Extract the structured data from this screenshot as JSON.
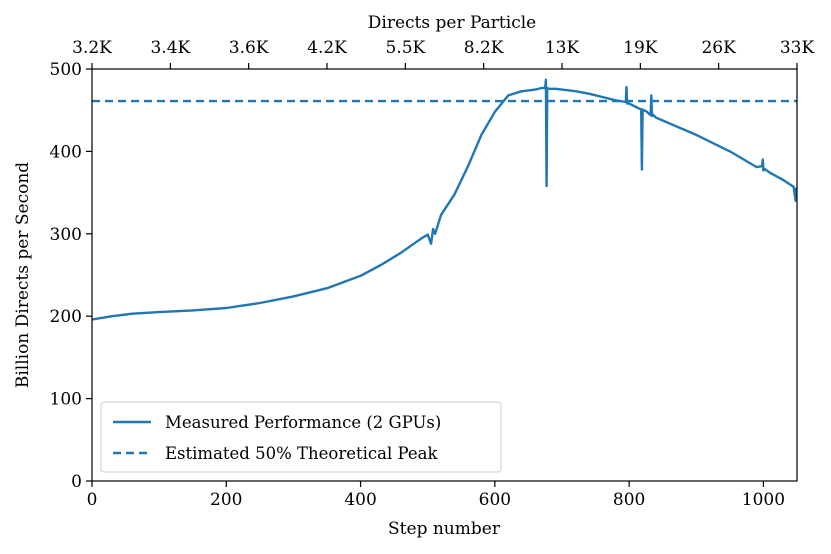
{
  "chart_data": {
    "type": "line",
    "xlabel": "Step number",
    "ylabel": "Billion Directs per Second",
    "top_xlabel": "Directs per Particle",
    "xlim": [
      0,
      1050
    ],
    "ylim": [
      0,
      500
    ],
    "xticks": [
      0,
      200,
      400,
      600,
      800,
      1000
    ],
    "yticks": [
      0,
      100,
      200,
      300,
      400,
      500
    ],
    "top_ticks": [
      {
        "x": 0,
        "label": "3.2K"
      },
      {
        "x": 116.7,
        "label": "3.4K"
      },
      {
        "x": 233.3,
        "label": "3.6K"
      },
      {
        "x": 350,
        "label": "4.2K"
      },
      {
        "x": 466.7,
        "label": "5.5K"
      },
      {
        "x": 583.3,
        "label": "8.2K"
      },
      {
        "x": 700,
        "label": "13K"
      },
      {
        "x": 816.7,
        "label": "19K"
      },
      {
        "x": 933.3,
        "label": "26K"
      },
      {
        "x": 1050,
        "label": "33K"
      }
    ],
    "color": "#1f77b4",
    "legend_position": "lower-left",
    "series": [
      {
        "name": "Measured Performance (2 GPUs)",
        "style": "solid",
        "x": [
          0,
          30,
          60,
          100,
          150,
          200,
          250,
          300,
          350,
          400,
          430,
          460,
          490,
          500,
          505,
          508,
          511,
          520,
          540,
          560,
          580,
          600,
          620,
          640,
          650,
          660,
          670,
          675,
          676,
          677,
          678,
          680,
          690,
          700,
          720,
          740,
          760,
          780,
          795,
          796,
          797,
          798,
          800,
          815,
          818,
          819,
          820,
          821,
          825,
          832,
          833,
          834,
          835,
          840,
          860,
          900,
          950,
          990,
          998,
          999,
          1000,
          1001,
          1010,
          1030,
          1045,
          1048,
          1049,
          1050
        ],
        "y": [
          196,
          200,
          203,
          205,
          207,
          210,
          216,
          224,
          234,
          249,
          262,
          277,
          294,
          299,
          288,
          306,
          300,
          323,
          348,
          382,
          420,
          448,
          468,
          473,
          474,
          475,
          477,
          477,
          487,
          358,
          477,
          476,
          476,
          475,
          473,
          470,
          466,
          462,
          460,
          478,
          458,
          459,
          458,
          452,
          451,
          378,
          451,
          450,
          449,
          444,
          468,
          443,
          445,
          441,
          434,
          420,
          400,
          381,
          382,
          390,
          377,
          379,
          374,
          365,
          357,
          340,
          355,
          355
        ]
      },
      {
        "name": "Estimated 50% Theoretical Peak",
        "style": "dashed",
        "x": [
          0,
          1050
        ],
        "y": [
          461,
          461
        ]
      }
    ]
  }
}
